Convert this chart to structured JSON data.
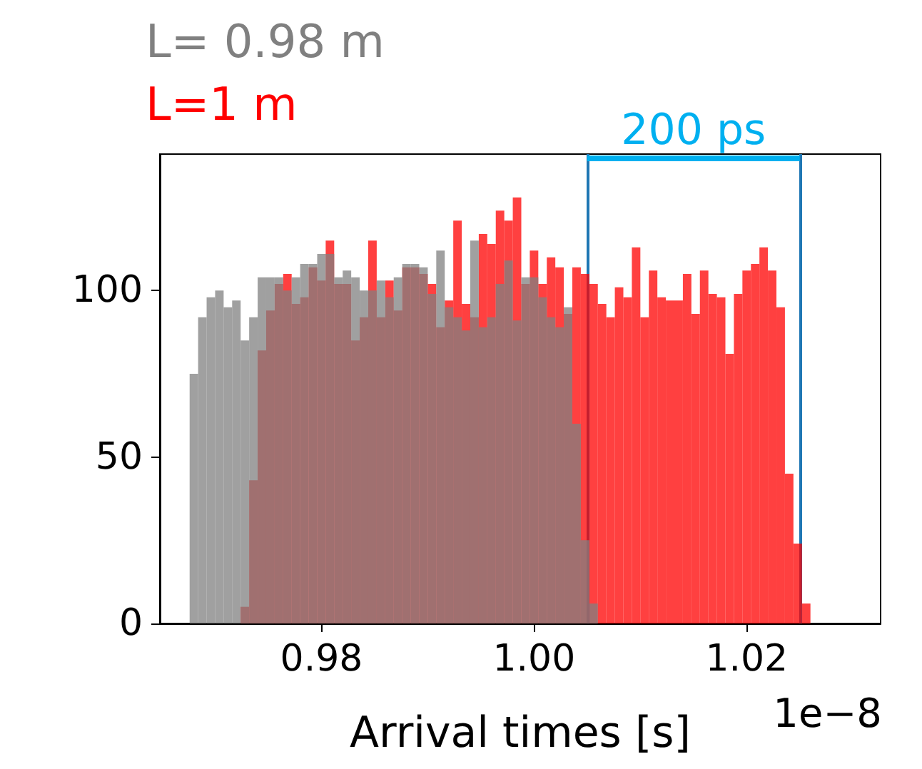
{
  "chart_data": {
    "type": "histogram",
    "xlabel": "Arrival times [s]",
    "bins": [
      0.9676,
      0.9684,
      0.9692,
      0.97,
      0.9708,
      0.9716,
      0.9724,
      0.9732,
      0.974,
      0.9748,
      0.9756,
      0.9764,
      0.9772,
      0.978,
      0.9788,
      0.9796,
      0.9804,
      0.9812,
      0.982,
      0.9828,
      0.9836,
      0.9844,
      0.9852,
      0.986,
      0.9868,
      0.9876,
      0.9884,
      0.9892,
      0.99,
      0.9908,
      0.9916,
      0.9924,
      0.9932,
      0.994,
      0.9948,
      0.9956,
      0.9964,
      0.9972,
      0.998,
      0.9988,
      0.9996,
      1.0004,
      1.0012,
      1.002,
      1.0028,
      1.0036,
      1.0044,
      1.0052,
      1.006,
      1.0068,
      1.0076,
      1.0084,
      1.0092,
      1.01,
      1.0108,
      1.0116,
      1.0124,
      1.0132,
      1.014,
      1.0148,
      1.0156,
      1.0164,
      1.0172,
      1.018,
      1.0188,
      1.0196,
      1.0204,
      1.0212,
      1.022,
      1.0228,
      1.0236,
      1.0244,
      1.0252,
      1.026
    ],
    "series": [
      {
        "name": "L= 0.98 m",
        "color": "#808080",
        "values": [
          75,
          92,
          98,
          100,
          95,
          97,
          85,
          92,
          104,
          104,
          104,
          100,
          104,
          108,
          108,
          111,
          111,
          104,
          106,
          104,
          100,
          100,
          103,
          98,
          104,
          108,
          108,
          107,
          99,
          112,
          95,
          92,
          88,
          115,
          89,
          92,
          102,
          109,
          91,
          104,
          104,
          98,
          92,
          89,
          95,
          60,
          25,
          6,
          0,
          0,
          0,
          0,
          0,
          0,
          0,
          0,
          0,
          0,
          0,
          0,
          0,
          0,
          0,
          0,
          0,
          0,
          0,
          0,
          0,
          0,
          0,
          0,
          0
        ]
      },
      {
        "name": "L=1 m",
        "color": "#ff0000",
        "values": [
          0,
          0,
          0,
          0,
          0,
          0,
          5,
          43,
          82,
          94,
          102,
          105,
          96,
          98,
          107,
          103,
          115,
          102,
          102,
          85,
          92,
          115,
          92,
          103,
          94,
          107,
          107,
          105,
          102,
          89,
          97,
          121,
          96,
          92,
          117,
          114,
          124,
          121,
          128,
          102,
          112,
          102,
          110,
          107,
          93,
          107,
          105,
          102,
          96,
          92,
          101,
          98,
          113,
          92,
          106,
          98,
          97,
          97,
          105,
          93,
          106,
          99,
          98,
          81,
          99,
          106,
          108,
          113,
          106,
          95,
          45,
          24,
          6
        ]
      }
    ],
    "xlim": [
      0.9648,
      1.0326
    ],
    "xticks": [
      0.98,
      {
        "value": 1.0,
        "label": "1.00"
      },
      1.02
    ],
    "ylim": [
      0,
      141
    ],
    "yticks": [
      0,
      50,
      100
    ],
    "ref_lines": [
      {
        "axis": "x",
        "value": 1.005,
        "color": "#1f77b4"
      },
      {
        "axis": "x",
        "value": 1.025,
        "color": "#1f77b4"
      }
    ],
    "annotations": [
      "200 ps",
      "1e−8"
    ],
    "grid": false,
    "legend": "top left"
  }
}
